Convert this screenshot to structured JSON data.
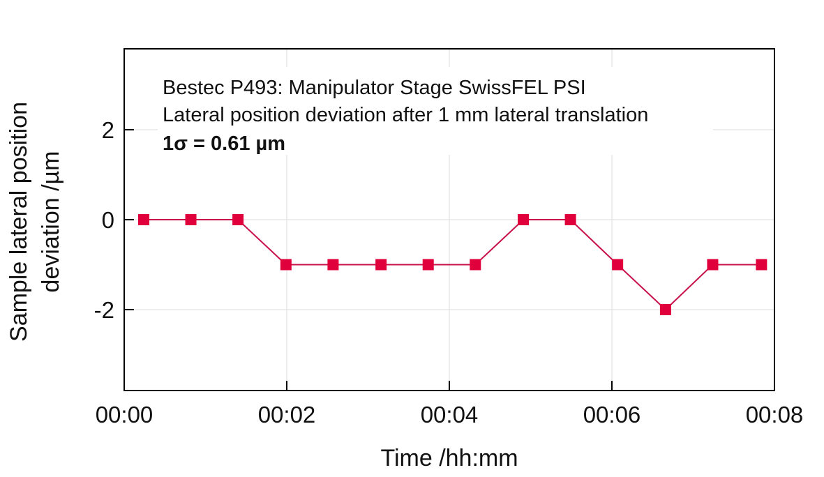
{
  "chart_data": {
    "type": "line",
    "title": "",
    "annotation": {
      "lines": [
        "Bestec P493: Manipulator Stage SwissFEL PSI",
        "Lateral position deviation after 1 mm lateral translation",
        "1σ = 0.61 µm"
      ]
    },
    "xlabel": "Time /hh:mm",
    "ylabel": [
      "Sample lateral position",
      "deviation /µm"
    ],
    "x_unit": "minutes",
    "xlim": [
      0,
      8
    ],
    "ylim": [
      -3.8,
      3.8
    ],
    "x_ticks": [
      0,
      2,
      4,
      6,
      8
    ],
    "x_tick_labels": [
      "00:00",
      "00:02",
      "00:04",
      "00:06",
      "00:08"
    ],
    "y_ticks": [
      2,
      0,
      -2
    ],
    "y_tick_labels": [
      "2",
      "0",
      "-2"
    ],
    "grid": true,
    "legend": "none",
    "series": [
      {
        "color": "#e0003c",
        "line_color": "#c8104a",
        "marker": "square",
        "x": [
          0.24,
          0.82,
          1.4,
          1.99,
          2.57,
          3.16,
          3.74,
          4.32,
          4.91,
          5.49,
          6.07,
          6.66,
          7.24,
          7.84
        ],
        "y": [
          0,
          0,
          0,
          -1,
          -1,
          -1,
          -1,
          -1,
          0,
          0,
          -1,
          -2,
          -1,
          -1
        ]
      }
    ]
  }
}
